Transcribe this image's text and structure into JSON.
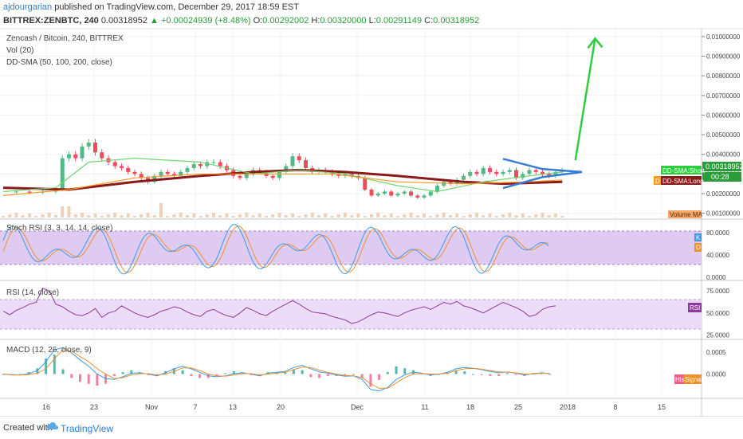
{
  "header": {
    "user": "ajdourgarian",
    "published": "published on TradingView.com, December 29, 2017 18:59 EST",
    "symbol": "BITTREX:ZENBTC, 240",
    "price": "0.00318952",
    "change": "▲ +0.00024939 (+8.48%)",
    "o_label": "O:",
    "o": "0.00292002",
    "h_label": "H:",
    "h": "0.00320000",
    "l_label": "L:",
    "l": "0.00291149",
    "c_label": "C:",
    "c": "0.00318952"
  },
  "panes": {
    "main_title": "Zencash / Bitcoin, 240, BITTREX",
    "vol_label": "Vol (20)",
    "sma_label": "DD-SMA (50, 100, 200, close)",
    "stoch_label": "Stoch RSI (3, 3, 14, 14, close)",
    "rsi_label": "RSI (14, close)",
    "macd_label": "MACD (12, 26, close, 9)"
  },
  "tags": {
    "price": "0.00318952",
    "sma_short": "DD-SMA:Short",
    "time": "00:28",
    "sma_long": "DD-SMA:Long",
    "volume_ma": "Volume MA",
    "k": "K",
    "d": "D",
    "rsi": "RSI",
    "hist": "Hist",
    "signal": "Signal"
  },
  "footer": {
    "created_with": "Created with",
    "tradingview": "TradingView"
  },
  "colors": {
    "price_tag": "#2a9d3a",
    "sma_long": "#8b1a1a",
    "sma_mid": "#f59a23",
    "sma_short": "#6fd56f",
    "trend_arrow": "#2ecc40",
    "triangle": "#3a7bd5",
    "stoch_band": "#d9c2f0",
    "rsi_band": "#ecdcf7",
    "macd_line": "#3d9be9",
    "signal_line": "#f0902d",
    "hist": "#ee5f87"
  },
  "chart_data": [
    {
      "type": "candlestick",
      "title": "Zencash / Bitcoin, 240, BITTREX",
      "x_ticks": [
        "16",
        "23",
        "Nov",
        "7",
        "13",
        "20",
        "Dec",
        "11",
        "18",
        "25",
        "2018",
        "8",
        "15"
      ],
      "y_ticks": [
        "0.01000000",
        "0.00900000",
        "0.00800000",
        "0.00700000",
        "0.00600000",
        "0.00500000",
        "0.00400000",
        "0.00300000",
        "0.00200000",
        "0.00100000"
      ],
      "ylim": [
        0.0007,
        0.0104
      ],
      "close_path": [
        [
          0,
          0.0021
        ],
        [
          2,
          0.0021
        ],
        [
          4,
          0.00205
        ],
        [
          6,
          0.0021
        ],
        [
          8,
          0.0022
        ],
        [
          9,
          0.0038
        ],
        [
          10,
          0.004
        ],
        [
          11,
          0.0038
        ],
        [
          12,
          0.0044
        ],
        [
          13,
          0.0046
        ],
        [
          14,
          0.0041
        ],
        [
          15,
          0.0038
        ],
        [
          16,
          0.0036
        ],
        [
          17,
          0.0034
        ],
        [
          18,
          0.0033
        ],
        [
          19,
          0.0031
        ],
        [
          20,
          0.003
        ],
        [
          21,
          0.0028
        ],
        [
          22,
          0.0026
        ],
        [
          23,
          0.0029
        ],
        [
          24,
          0.0031
        ],
        [
          25,
          0.003
        ],
        [
          26,
          0.0029
        ],
        [
          27,
          0.0031
        ],
        [
          28,
          0.0033
        ],
        [
          29,
          0.0035
        ],
        [
          30,
          0.0034
        ],
        [
          31,
          0.0036
        ],
        [
          32,
          0.0036
        ],
        [
          33,
          0.0034
        ],
        [
          34,
          0.0032
        ],
        [
          35,
          0.0029
        ],
        [
          36,
          0.0028
        ],
        [
          37,
          0.003
        ],
        [
          38,
          0.0032
        ],
        [
          39,
          0.0031
        ],
        [
          40,
          0.0029
        ],
        [
          41,
          0.0028
        ],
        [
          42,
          0.0031
        ],
        [
          43,
          0.0034
        ],
        [
          44,
          0.0039
        ],
        [
          45,
          0.0037
        ],
        [
          46,
          0.0033
        ],
        [
          47,
          0.0031
        ],
        [
          48,
          0.0032
        ],
        [
          49,
          0.0031
        ],
        [
          50,
          0.003
        ],
        [
          51,
          0.0029
        ],
        [
          52,
          0.003
        ],
        [
          53,
          0.0029
        ],
        [
          54,
          0.0028
        ],
        [
          55,
          0.0022
        ],
        [
          56,
          0.0019
        ],
        [
          57,
          0.002
        ],
        [
          58,
          0.0021
        ],
        [
          59,
          0.0019
        ],
        [
          60,
          0.002
        ],
        [
          61,
          0.0021
        ],
        [
          62,
          0.0019
        ],
        [
          63,
          0.0018
        ],
        [
          64,
          0.0019
        ],
        [
          65,
          0.0021
        ],
        [
          66,
          0.0024
        ],
        [
          67,
          0.0026
        ],
        [
          68,
          0.0025
        ],
        [
          69,
          0.0027
        ],
        [
          70,
          0.0029
        ],
        [
          71,
          0.0031
        ],
        [
          72,
          0.003
        ],
        [
          73,
          0.0033
        ],
        [
          74,
          0.0031
        ],
        [
          75,
          0.003
        ],
        [
          76,
          0.0031
        ],
        [
          77,
          0.0032
        ],
        [
          78,
          0.0028
        ],
        [
          79,
          0.003
        ],
        [
          80,
          0.0032
        ],
        [
          81,
          0.0031
        ],
        [
          82,
          0.003
        ],
        [
          83,
          0.0029
        ],
        [
          84,
          0.0031
        ],
        [
          85,
          0.00319
        ]
      ],
      "series": [
        {
          "name": "DD-SMA:Long",
          "values": [
            [
              0,
              0.0023
            ],
            [
              10,
              0.0022
            ],
            [
              20,
              0.0026
            ],
            [
              30,
              0.0029
            ],
            [
              38,
              0.0031
            ],
            [
              45,
              0.0032
            ],
            [
              52,
              0.0031
            ],
            [
              60,
              0.0029
            ],
            [
              70,
              0.0026
            ],
            [
              76,
              0.0025
            ],
            [
              85,
              0.0026
            ]
          ]
        },
        {
          "name": "DD-SMA:Short",
          "values": [
            [
              0,
              0.0021
            ],
            [
              8,
              0.0023
            ],
            [
              13,
              0.0036
            ],
            [
              20,
              0.0038
            ],
            [
              30,
              0.0036
            ],
            [
              38,
              0.003
            ],
            [
              45,
              0.0032
            ],
            [
              52,
              0.003
            ],
            [
              60,
              0.0024
            ],
            [
              66,
              0.0021
            ],
            [
              73,
              0.0026
            ],
            [
              80,
              0.0029
            ],
            [
              85,
              0.0031
            ]
          ]
        },
        {
          "name": "SMA 100",
          "values": [
            [
              0,
              0.0019
            ],
            [
              10,
              0.0022
            ],
            [
              20,
              0.0028
            ],
            [
              30,
              0.003
            ],
            [
              40,
              0.003
            ],
            [
              50,
              0.003
            ],
            [
              60,
              0.0026
            ],
            [
              70,
              0.0025
            ],
            [
              80,
              0.0026
            ],
            [
              85,
              0.0027
            ]
          ]
        }
      ],
      "annotations": [
        {
          "type": "arrow",
          "from": [
            87,
            0.0037
          ],
          "to": [
            90,
            0.0099
          ]
        },
        {
          "type": "triangle",
          "top": [
            [
              76,
              0.00377
            ],
            [
              82,
              0.00325
            ],
            [
              88,
              0.0031
            ]
          ],
          "bottom": [
            [
              76,
              0.00228
            ],
            [
              82,
              0.00284
            ],
            [
              88,
              0.0031
            ]
          ]
        }
      ]
    },
    {
      "type": "line",
      "title": "Stoch RSI (3, 3, 14, 14, close)",
      "y_ticks": [
        "80.0000",
        "40.0000",
        "0.0000"
      ],
      "ylim": [
        0,
        100
      ],
      "band": [
        20,
        80
      ],
      "last_k": 62,
      "last_d": 53
    },
    {
      "type": "line",
      "title": "RSI (14, close)",
      "y_ticks": [
        "75.0000",
        "50.0000",
        "25.0000"
      ],
      "ylim": [
        20,
        85
      ],
      "band": [
        30,
        70
      ],
      "values": [
        52,
        48,
        53,
        56,
        60,
        62,
        78,
        75,
        60,
        57,
        52,
        48,
        47,
        50,
        55,
        45,
        50,
        52,
        58,
        54,
        50,
        47,
        45,
        48,
        52,
        54,
        57,
        55,
        51,
        48,
        46,
        52,
        54,
        50,
        47,
        45,
        50,
        56,
        53,
        49,
        47,
        52,
        56,
        60,
        64,
        60,
        55,
        51,
        50,
        49,
        46,
        44,
        42,
        38,
        40,
        44,
        48,
        51,
        50,
        48,
        46,
        50,
        53,
        55,
        57,
        54,
        58,
        62,
        60,
        63,
        58,
        56,
        53,
        50,
        54,
        58,
        62,
        59,
        56,
        52,
        46,
        48,
        54,
        57,
        58
      ]
    },
    {
      "type": "line",
      "title": "MACD (12, 26, close, 9)",
      "y_ticks": [
        "0.0005",
        "0.0000"
      ],
      "ylim": [
        -0.00055,
        0.00075
      ],
      "series": [
        {
          "name": "MACD",
          "values": [
            0,
            -2e-05,
            -2e-05,
            1e-05,
            8e-05,
            0.00028,
            0.00055,
            0.0006,
            0.00048,
            0.00032,
            0.00018,
            0.0,
            -0.0001,
            -0.00012,
            -6e-05,
            2e-05,
            3e-05,
            0.0,
            -4e-05,
            3e-05,
            0.00012,
            0.00018,
            0.00012,
            4e-05,
            -4e-05,
            -6e-05,
            -4e-05,
            1e-05,
            3e-05,
            0.0,
            -4e-05,
            2e-05,
            4e-05,
            6e-05,
            0.00015,
            0.0002,
            0.00012,
            5e-05,
            2e-05,
            -2e-05,
            -5e-05,
            -4e-05,
            -0.00012,
            -0.00035,
            -0.00038,
            -0.0003,
            -0.00012,
            -2e-05,
            4e-05,
            2e-05,
            -2e-05,
            0.0,
            4e-05,
            0.00012,
            0.00015,
            0.00013,
            0.0001,
            6e-05,
            3e-05,
            5e-05,
            2e-05,
            -2e-05,
            1e-05,
            3e-05,
            1e-05
          ]
        },
        {
          "name": "Signal",
          "values": [
            0,
            -1e-05,
            -2e-05,
            -1e-05,
            2e-05,
            0.00012,
            0.00035,
            0.00055,
            0.00052,
            0.0004,
            0.00028,
            0.00012,
            0.0,
            -0.0001,
            -8e-05,
            -2e-05,
            1e-05,
            1e-05,
            -2e-05,
            0.0,
            6e-05,
            0.00014,
            0.00014,
            8e-05,
            0.0,
            -4e-05,
            -5e-05,
            -2e-05,
            1e-05,
            1e-05,
            -2e-05,
            0.0,
            2e-05,
            4e-05,
            0.0001,
            0.00016,
            0.00015,
            9e-05,
            4e-05,
            0.0,
            -3e-05,
            -4e-05,
            -8e-05,
            -0.00022,
            -0.00032,
            -0.00032,
            -0.0002,
            -8e-05,
            0.0,
            1e-05,
            0.0,
            0.0,
            2e-05,
            8e-05,
            0.00012,
            0.00013,
            0.00011,
            8e-05,
            5e-05,
            4e-05,
            3e-05,
            0.0,
            0.0,
            2e-05,
            1e-05
          ]
        }
      ]
    }
  ]
}
